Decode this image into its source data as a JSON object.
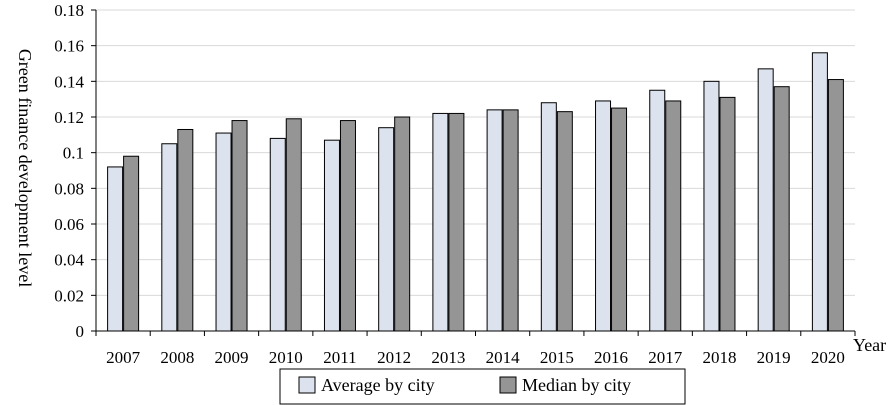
{
  "chart_data": {
    "type": "bar",
    "title": "",
    "xlabel": "Year",
    "ylabel": "Green finance development level",
    "ylim": [
      0,
      0.18
    ],
    "yticks": [
      "0",
      "0.02",
      "0.04",
      "0.06",
      "0.08",
      "0.1",
      "0.12",
      "0.14",
      "0.16",
      "0.18"
    ],
    "grid": true,
    "legend_position": "bottom-center",
    "categories": [
      "2007",
      "2008",
      "2009",
      "2010",
      "2011",
      "2012",
      "2013",
      "2014",
      "2015",
      "2016",
      "2017",
      "2018",
      "2019",
      "2020"
    ],
    "series": [
      {
        "name": "Average by city",
        "color": "#dce3ee",
        "values": [
          0.092,
          0.105,
          0.111,
          0.108,
          0.107,
          0.114,
          0.122,
          0.124,
          0.128,
          0.129,
          0.135,
          0.14,
          0.147,
          0.156
        ]
      },
      {
        "name": "Median by city",
        "color": "#959595",
        "values": [
          0.098,
          0.113,
          0.118,
          0.119,
          0.118,
          0.12,
          0.122,
          0.124,
          0.123,
          0.125,
          0.129,
          0.131,
          0.137,
          0.141
        ]
      }
    ]
  }
}
